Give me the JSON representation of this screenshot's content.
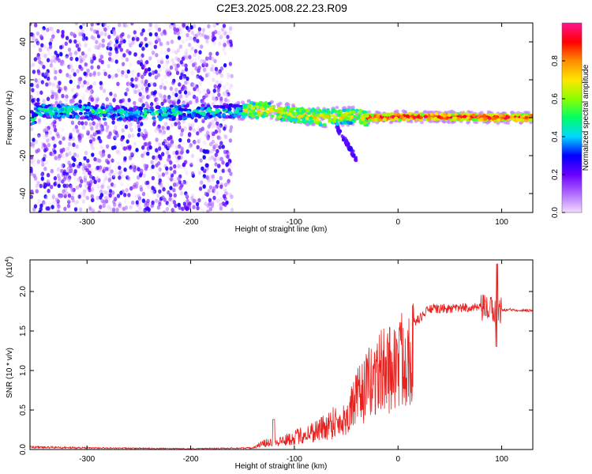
{
  "title": "C2E3.2025.008.22.23.R09",
  "chart_data": [
    {
      "type": "heatmap",
      "xlabel": "Height of straight line (km)",
      "ylabel": "Frequency (Hz)",
      "xlim": [
        -355,
        130
      ],
      "ylim": [
        -50,
        50
      ],
      "xticks": [
        -300,
        -200,
        -100,
        0,
        100
      ],
      "yticks": [
        -40,
        -20,
        0,
        20,
        40
      ],
      "colorbar": {
        "label": "Normalized spectral amplitude",
        "range": [
          0,
          1
        ],
        "ticks": [
          "0.0",
          "0.2",
          "0.4",
          "0.6",
          "0.8"
        ],
        "colors": [
          "#f2dcff",
          "#b069ff",
          "#6a00ff",
          "#0000ff",
          "#00d8ff",
          "#00ff66",
          "#8cff00",
          "#ffe600",
          "#ff8c00",
          "#ff0000",
          "#ff1493"
        ]
      },
      "noise_region_x": [
        -355,
        -160
      ],
      "ridge_center": [
        {
          "x": -350,
          "y": 4
        },
        {
          "x": -300,
          "y": 3
        },
        {
          "x": -250,
          "y": 2
        },
        {
          "x": -200,
          "y": 3
        },
        {
          "x": -150,
          "y": 4
        },
        {
          "x": -125,
          "y": 4
        },
        {
          "x": -100,
          "y": 2
        },
        {
          "x": -75,
          "y": 0
        },
        {
          "x": -50,
          "y": 1
        },
        {
          "x": -30,
          "y": 0
        },
        {
          "x": 0,
          "y": 0.5
        },
        {
          "x": 50,
          "y": 0.5
        },
        {
          "x": 100,
          "y": 0
        },
        {
          "x": 130,
          "y": 0
        }
      ]
    },
    {
      "type": "line",
      "xlabel": "Height of straight line (km)",
      "ylabel": "SNR (10 * v/v)",
      "yscale_label": "(x10",
      "yscale_exp": "4",
      "xlim": [
        -355,
        130
      ],
      "ylim": [
        0,
        2.4
      ],
      "xticks": [
        -300,
        -200,
        -100,
        0,
        100
      ],
      "yticks": [
        0.0,
        0.5,
        1.0,
        1.5,
        2.0
      ],
      "series_color": "#e8201e",
      "envelope": [
        {
          "x": -355,
          "y": 0.03
        },
        {
          "x": -300,
          "y": 0.02
        },
        {
          "x": -200,
          "y": 0.01
        },
        {
          "x": -140,
          "y": 0.02
        },
        {
          "x": -130,
          "y": 0.08
        },
        {
          "x": -110,
          "y": 0.12
        },
        {
          "x": -90,
          "y": 0.2
        },
        {
          "x": -70,
          "y": 0.3
        },
        {
          "x": -50,
          "y": 0.5
        },
        {
          "x": -40,
          "y": 0.8
        },
        {
          "x": -30,
          "y": 1.0
        },
        {
          "x": -20,
          "y": 1.2
        },
        {
          "x": 0,
          "y": 1.35
        },
        {
          "x": 10,
          "y": 1.55
        },
        {
          "x": 20,
          "y": 1.65
        },
        {
          "x": 30,
          "y": 1.78
        },
        {
          "x": 50,
          "y": 1.78
        },
        {
          "x": 70,
          "y": 1.8
        },
        {
          "x": 85,
          "y": 1.78
        },
        {
          "x": 95,
          "y": 1.76
        },
        {
          "x": 110,
          "y": 1.77
        },
        {
          "x": 130,
          "y": 1.76
        }
      ]
    }
  ]
}
